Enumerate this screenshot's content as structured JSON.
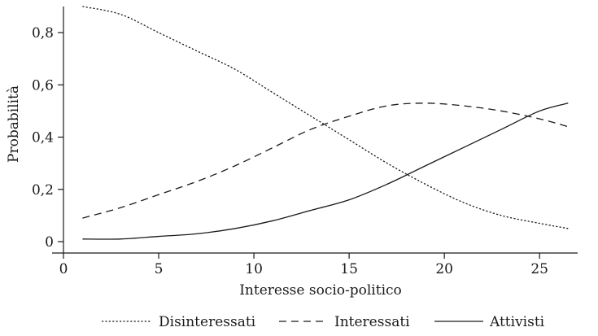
{
  "chart_data": {
    "type": "line",
    "xlabel": "Interesse socio-politico",
    "ylabel": "Probabilità",
    "xlim": [
      0,
      27
    ],
    "ylim": [
      0,
      0.9
    ],
    "x_ticks": [
      0,
      5,
      10,
      15,
      20,
      25
    ],
    "x_tick_labels": [
      "0",
      "5",
      "10",
      "15",
      "20",
      "25"
    ],
    "y_ticks": [
      0,
      0.2,
      0.4,
      0.6,
      0.8
    ],
    "y_tick_labels": [
      "0",
      "0,2",
      "0,4",
      "0,6",
      "0,8"
    ],
    "legend_position": "bottom",
    "series": [
      {
        "name": "Disinteressati",
        "line_style": "dotted",
        "x": [
          1,
          3,
          5,
          7,
          9,
          11,
          13,
          15,
          17,
          19,
          21,
          23,
          25,
          26.5
        ],
        "values": [
          0.9,
          0.87,
          0.8,
          0.73,
          0.66,
          0.57,
          0.48,
          0.39,
          0.3,
          0.22,
          0.15,
          0.1,
          0.07,
          0.05
        ]
      },
      {
        "name": "Interessati",
        "line_style": "dashed",
        "x": [
          1,
          3,
          5,
          7,
          9,
          11,
          13,
          15,
          17,
          19,
          21,
          23,
          25,
          26.5
        ],
        "values": [
          0.09,
          0.13,
          0.18,
          0.23,
          0.29,
          0.36,
          0.43,
          0.48,
          0.52,
          0.53,
          0.52,
          0.5,
          0.47,
          0.44
        ]
      },
      {
        "name": "Attivisti",
        "line_style": "solid",
        "x": [
          1,
          3,
          5,
          7,
          9,
          11,
          13,
          15,
          17,
          19,
          21,
          23,
          25,
          26.5
        ],
        "values": [
          0.01,
          0.01,
          0.02,
          0.03,
          0.05,
          0.08,
          0.12,
          0.16,
          0.22,
          0.29,
          0.36,
          0.43,
          0.5,
          0.53
        ]
      }
    ]
  }
}
